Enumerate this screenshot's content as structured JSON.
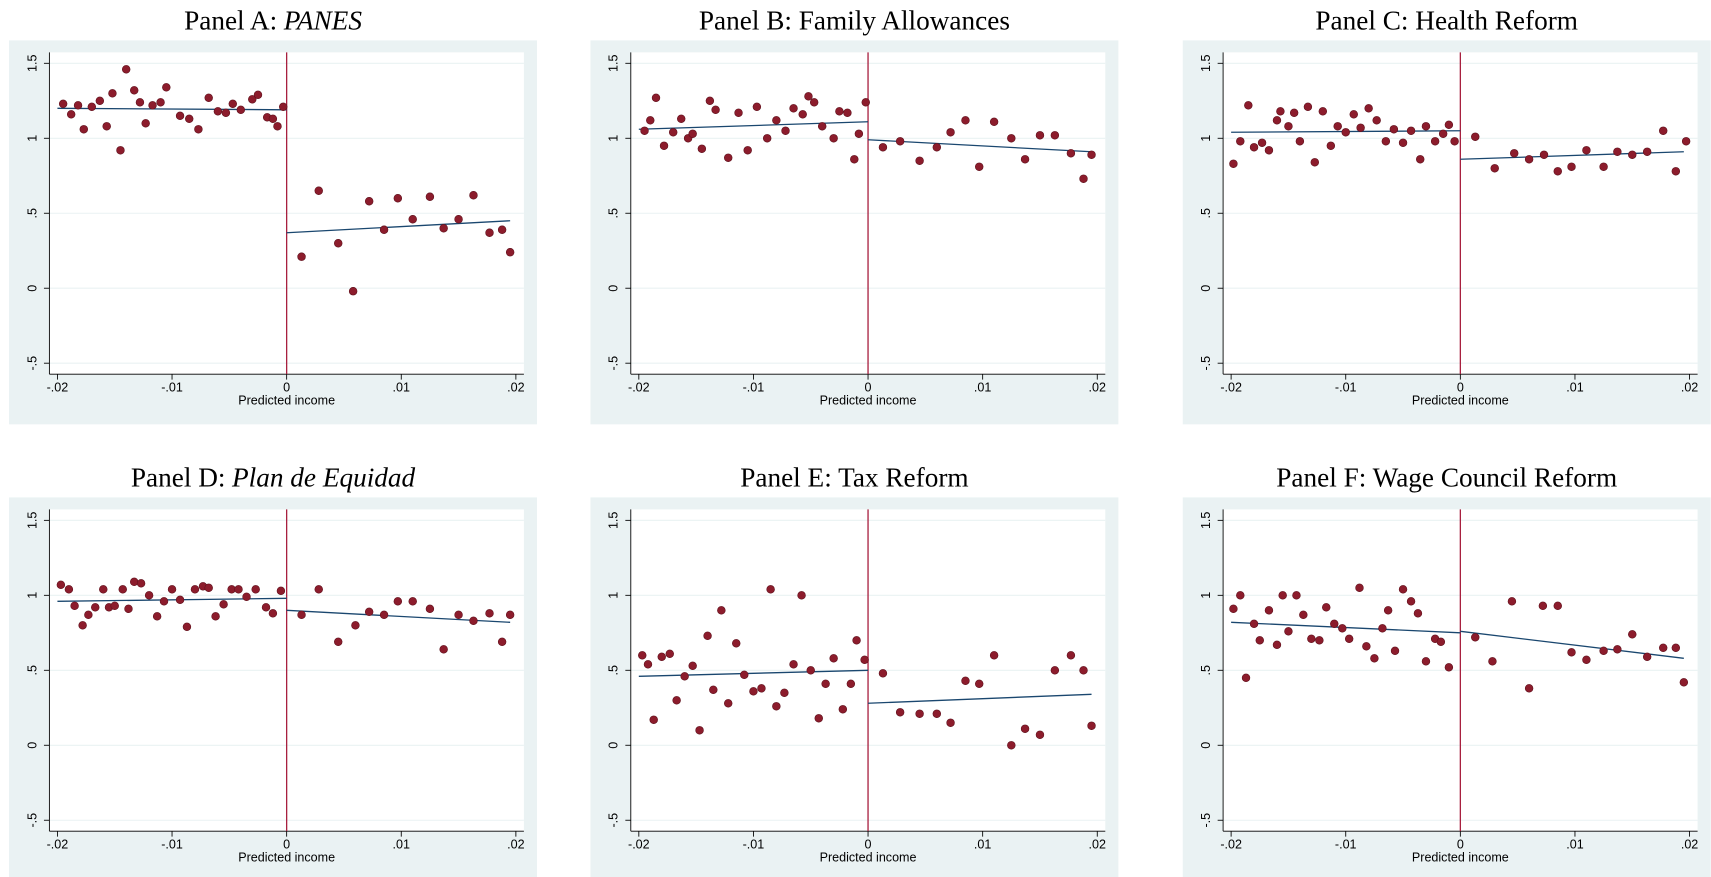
{
  "chart_data": [
    {
      "type": "scatter",
      "title": "Panel A:",
      "title_italic": "PANES",
      "xlabel": "Predicted income",
      "x": [
        -0.0195,
        -0.0188,
        -0.0182,
        -0.0177,
        -0.017,
        -0.0163,
        -0.0157,
        -0.0152,
        -0.0145,
        -0.014,
        -0.0133,
        -0.0128,
        -0.0123,
        -0.0117,
        -0.011,
        -0.0105,
        -0.0093,
        -0.0085,
        -0.0077,
        -0.0068,
        -0.006,
        -0.0053,
        -0.0047,
        -0.004,
        -0.003,
        -0.0025,
        -0.0017,
        -0.0012,
        -0.0008,
        -0.0003,
        0.0013,
        0.0028,
        0.0045,
        0.0058,
        0.0072,
        0.0085,
        0.0097,
        0.011,
        0.0125,
        0.0137,
        0.015,
        0.0163,
        0.0177,
        0.0188,
        0.0195
      ],
      "values": [
        1.23,
        1.16,
        1.22,
        1.06,
        1.21,
        1.25,
        1.08,
        1.3,
        0.92,
        1.46,
        1.32,
        1.24,
        1.1,
        1.22,
        1.24,
        1.34,
        1.15,
        1.13,
        1.06,
        1.27,
        1.18,
        1.17,
        1.23,
        1.19,
        1.26,
        1.29,
        1.14,
        1.13,
        1.08,
        1.21,
        0.21,
        0.65,
        0.3,
        -0.02,
        0.58,
        0.39,
        0.6,
        0.46,
        0.61,
        0.4,
        0.46,
        0.62,
        0.37,
        0.39,
        0.24
      ],
      "fits": [
        {
          "x": [
            -0.02,
            0
          ],
          "values": [
            1.2,
            1.19
          ]
        },
        {
          "x": [
            0,
            0.0195
          ],
          "values": [
            0.37,
            0.45
          ]
        }
      ],
      "cutoff_x": 0,
      "marker_color": "#8c1c2c",
      "line_color": "#1a476f",
      "cutoff_color": "#a8203f",
      "grid": true,
      "xlim": [
        -0.0207,
        0.0207
      ],
      "ylim": [
        -0.573,
        1.573
      ],
      "xticks": [
        {
          "value": -0.02,
          "label": "-.02"
        },
        {
          "value": -0.01,
          "label": "-.01"
        },
        0,
        {
          "value": 0.01,
          "label": ".01"
        },
        {
          "value": 0.02,
          "label": ".02"
        }
      ],
      "yticks": [
        {
          "value": -0.5,
          "label": "-.5"
        },
        0,
        {
          "value": 0.5,
          "label": ".5"
        },
        1,
        1.5
      ]
    },
    {
      "type": "scatter",
      "title": "Panel B: Family Allowances",
      "xlabel": "Predicted income",
      "x": [
        -0.0195,
        -0.019,
        -0.0185,
        -0.0178,
        -0.017,
        -0.0163,
        -0.0157,
        -0.0153,
        -0.0145,
        -0.0138,
        -0.0133,
        -0.0122,
        -0.0113,
        -0.0105,
        -0.0097,
        -0.0088,
        -0.008,
        -0.0072,
        -0.0065,
        -0.0057,
        -0.0052,
        -0.0047,
        -0.004,
        -0.003,
        -0.0025,
        -0.0018,
        -0.0012,
        -0.0008,
        -0.0002,
        0.0013,
        0.0028,
        0.0045,
        0.006,
        0.0072,
        0.0085,
        0.0097,
        0.011,
        0.0125,
        0.0137,
        0.015,
        0.0163,
        0.0177,
        0.0188,
        0.0195
      ],
      "values": [
        1.05,
        1.12,
        1.27,
        0.95,
        1.04,
        1.13,
        1.0,
        1.03,
        0.93,
        1.25,
        1.19,
        0.87,
        1.17,
        0.92,
        1.21,
        1.0,
        1.12,
        1.05,
        1.2,
        1.16,
        1.28,
        1.24,
        1.08,
        1.0,
        1.18,
        1.17,
        0.86,
        1.03,
        1.24,
        0.94,
        0.98,
        0.85,
        0.94,
        1.04,
        1.12,
        0.81,
        1.11,
        1.0,
        0.86,
        1.02,
        1.02,
        0.9,
        0.73,
        0.89
      ],
      "fits": [
        {
          "x": [
            -0.02,
            0
          ],
          "values": [
            1.06,
            1.11
          ]
        },
        {
          "x": [
            0,
            0.0195
          ],
          "values": [
            0.99,
            0.91
          ]
        }
      ],
      "cutoff_x": 0,
      "marker_color": "#8c1c2c",
      "line_color": "#1a476f",
      "cutoff_color": "#a8203f",
      "grid": true,
      "xlim": [
        -0.0207,
        0.0207
      ],
      "ylim": [
        -0.573,
        1.573
      ],
      "xticks": [
        {
          "value": -0.02,
          "label": "-.02"
        },
        {
          "value": -0.01,
          "label": "-.01"
        },
        0,
        {
          "value": 0.01,
          "label": ".01"
        },
        {
          "value": 0.02,
          "label": ".02"
        }
      ],
      "yticks": [
        {
          "value": -0.5,
          "label": "-.5"
        },
        0,
        {
          "value": 0.5,
          "label": ".5"
        },
        1,
        1.5
      ]
    },
    {
      "type": "scatter",
      "title": "Panel C: Health Reform",
      "xlabel": "Predicted income",
      "x": [
        -0.0198,
        -0.0192,
        -0.0185,
        -0.018,
        -0.0173,
        -0.0167,
        -0.016,
        -0.0157,
        -0.015,
        -0.0145,
        -0.014,
        -0.0133,
        -0.0127,
        -0.012,
        -0.0113,
        -0.0107,
        -0.01,
        -0.0093,
        -0.0087,
        -0.008,
        -0.0073,
        -0.0065,
        -0.0058,
        -0.005,
        -0.0043,
        -0.0035,
        -0.003,
        -0.0022,
        -0.0015,
        -0.001,
        -0.0005,
        0.0013,
        0.003,
        0.0047,
        0.006,
        0.0073,
        0.0085,
        0.0097,
        0.011,
        0.0125,
        0.0137,
        0.015,
        0.0163,
        0.0177,
        0.0188,
        0.0197
      ],
      "values": [
        0.83,
        0.98,
        1.22,
        0.94,
        0.97,
        0.92,
        1.12,
        1.18,
        1.08,
        1.17,
        0.98,
        1.21,
        0.84,
        1.18,
        0.95,
        1.08,
        1.04,
        1.16,
        1.07,
        1.2,
        1.12,
        0.98,
        1.06,
        0.97,
        1.05,
        0.86,
        1.08,
        0.98,
        1.03,
        1.09,
        0.98,
        1.01,
        0.8,
        0.9,
        0.86,
        0.89,
        0.78,
        0.81,
        0.92,
        0.81,
        0.91,
        0.89,
        0.91,
        1.05,
        0.78,
        0.98
      ],
      "fits": [
        {
          "x": [
            -0.02,
            0
          ],
          "values": [
            1.04,
            1.05
          ]
        },
        {
          "x": [
            0,
            0.0195
          ],
          "values": [
            0.86,
            0.91
          ]
        }
      ],
      "cutoff_x": 0,
      "marker_color": "#8c1c2c",
      "line_color": "#1a476f",
      "cutoff_color": "#a8203f",
      "grid": true,
      "xlim": [
        -0.0207,
        0.0207
      ],
      "ylim": [
        -0.573,
        1.573
      ],
      "xticks": [
        {
          "value": -0.02,
          "label": "-.02"
        },
        {
          "value": -0.01,
          "label": "-.01"
        },
        0,
        {
          "value": 0.01,
          "label": ".01"
        },
        {
          "value": 0.02,
          "label": ".02"
        }
      ],
      "yticks": [
        {
          "value": -0.5,
          "label": "-.5"
        },
        0,
        {
          "value": 0.5,
          "label": ".5"
        },
        1,
        1.5
      ]
    },
    {
      "type": "scatter",
      "title": "Panel D:",
      "title_italic": "Plan de Equidad",
      "xlabel": "Predicted income",
      "x": [
        -0.0197,
        -0.019,
        -0.0185,
        -0.0178,
        -0.0173,
        -0.0167,
        -0.016,
        -0.0155,
        -0.015,
        -0.0143,
        -0.0138,
        -0.0133,
        -0.0127,
        -0.012,
        -0.0113,
        -0.0107,
        -0.01,
        -0.0093,
        -0.0087,
        -0.008,
        -0.0073,
        -0.0068,
        -0.0062,
        -0.0055,
        -0.0048,
        -0.0042,
        -0.0035,
        -0.0027,
        -0.0018,
        -0.0012,
        -0.0005,
        0.0013,
        0.0028,
        0.0045,
        0.006,
        0.0072,
        0.0085,
        0.0097,
        0.011,
        0.0125,
        0.0137,
        0.015,
        0.0163,
        0.0177,
        0.0188,
        0.0195
      ],
      "values": [
        1.07,
        1.04,
        0.93,
        0.8,
        0.87,
        0.92,
        1.04,
        0.92,
        0.93,
        1.04,
        0.91,
        1.09,
        1.08,
        1.0,
        0.86,
        0.96,
        1.04,
        0.97,
        0.79,
        1.04,
        1.06,
        1.05,
        0.86,
        0.94,
        1.04,
        1.04,
        0.99,
        1.04,
        0.92,
        0.88,
        1.03,
        0.87,
        1.04,
        0.69,
        0.8,
        0.89,
        0.87,
        0.96,
        0.96,
        0.91,
        0.64,
        0.87,
        0.83,
        0.88,
        0.69,
        0.87
      ],
      "fits": [
        {
          "x": [
            -0.02,
            0
          ],
          "values": [
            0.96,
            0.98
          ]
        },
        {
          "x": [
            0,
            0.0195
          ],
          "values": [
            0.9,
            0.82
          ]
        }
      ],
      "cutoff_x": 0,
      "marker_color": "#8c1c2c",
      "line_color": "#1a476f",
      "cutoff_color": "#a8203f",
      "grid": true,
      "xlim": [
        -0.0207,
        0.0207
      ],
      "ylim": [
        -0.573,
        1.573
      ],
      "xticks": [
        {
          "value": -0.02,
          "label": "-.02"
        },
        {
          "value": -0.01,
          "label": "-.01"
        },
        0,
        {
          "value": 0.01,
          "label": ".01"
        },
        {
          "value": 0.02,
          "label": ".02"
        }
      ],
      "yticks": [
        {
          "value": -0.5,
          "label": "-.5"
        },
        0,
        {
          "value": 0.5,
          "label": ".5"
        },
        1,
        1.5
      ]
    },
    {
      "type": "scatter",
      "title": "Panel E: Tax Reform",
      "xlabel": "Predicted income",
      "x": [
        -0.0197,
        -0.0192,
        -0.0187,
        -0.018,
        -0.0173,
        -0.0167,
        -0.016,
        -0.0153,
        -0.0147,
        -0.014,
        -0.0135,
        -0.0128,
        -0.0122,
        -0.0115,
        -0.0108,
        -0.01,
        -0.0093,
        -0.0085,
        -0.008,
        -0.0073,
        -0.0065,
        -0.0058,
        -0.005,
        -0.0043,
        -0.0037,
        -0.003,
        -0.0022,
        -0.0015,
        -0.001,
        -0.0003,
        0.0013,
        0.0028,
        0.0045,
        0.006,
        0.0072,
        0.0085,
        0.0097,
        0.011,
        0.0125,
        0.0137,
        0.015,
        0.0163,
        0.0177,
        0.0188,
        0.0195
      ],
      "values": [
        0.6,
        0.54,
        0.17,
        0.59,
        0.61,
        0.3,
        0.46,
        0.53,
        0.1,
        0.73,
        0.37,
        0.9,
        0.28,
        0.68,
        0.47,
        0.36,
        0.38,
        1.04,
        0.26,
        0.35,
        0.54,
        1.0,
        0.5,
        0.18,
        0.41,
        0.58,
        0.24,
        0.41,
        0.7,
        0.57,
        0.48,
        0.22,
        0.21,
        0.21,
        0.15,
        0.43,
        0.41,
        0.6,
        0.0,
        0.11,
        0.07,
        0.5,
        0.6,
        0.5,
        0.13
      ],
      "fits": [
        {
          "x": [
            -0.02,
            0
          ],
          "values": [
            0.46,
            0.5
          ]
        },
        {
          "x": [
            0,
            0.0195
          ],
          "values": [
            0.28,
            0.34
          ]
        }
      ],
      "cutoff_x": 0,
      "marker_color": "#8c1c2c",
      "line_color": "#1a476f",
      "cutoff_color": "#a8203f",
      "grid": true,
      "xlim": [
        -0.0207,
        0.0207
      ],
      "ylim": [
        -0.573,
        1.573
      ],
      "xticks": [
        {
          "value": -0.02,
          "label": "-.02"
        },
        {
          "value": -0.01,
          "label": "-.01"
        },
        0,
        {
          "value": 0.01,
          "label": ".01"
        },
        {
          "value": 0.02,
          "label": ".02"
        }
      ],
      "yticks": [
        {
          "value": -0.5,
          "label": "-.5"
        },
        0,
        {
          "value": 0.5,
          "label": ".5"
        },
        1,
        1.5
      ]
    },
    {
      "type": "scatter",
      "title": "Panel F: Wage Council Reform",
      "xlabel": "Predicted income",
      "x": [
        -0.0198,
        -0.0192,
        -0.0187,
        -0.018,
        -0.0175,
        -0.0167,
        -0.016,
        -0.0155,
        -0.015,
        -0.0143,
        -0.0137,
        -0.013,
        -0.0123,
        -0.0117,
        -0.011,
        -0.0103,
        -0.0097,
        -0.0088,
        -0.0082,
        -0.0075,
        -0.0068,
        -0.0063,
        -0.0057,
        -0.005,
        -0.0043,
        -0.0037,
        -0.003,
        -0.0022,
        -0.0017,
        -0.001,
        0.0013,
        0.0028,
        0.0045,
        0.006,
        0.0072,
        0.0085,
        0.0097,
        0.011,
        0.0125,
        0.0137,
        0.015,
        0.0163,
        0.0177,
        0.0188,
        0.0195
      ],
      "values": [
        0.91,
        1.0,
        0.45,
        0.81,
        0.7,
        0.9,
        0.67,
        1.0,
        0.76,
        1.0,
        0.87,
        0.71,
        0.7,
        0.92,
        0.81,
        0.78,
        0.71,
        1.05,
        0.66,
        0.58,
        0.78,
        0.9,
        0.63,
        1.04,
        0.96,
        0.88,
        0.56,
        0.71,
        0.69,
        0.52,
        0.72,
        0.56,
        0.96,
        0.38,
        0.93,
        0.93,
        0.62,
        0.57,
        0.63,
        0.64,
        0.74,
        0.59,
        0.65,
        0.65,
        0.42
      ],
      "fits": [
        {
          "x": [
            -0.02,
            0
          ],
          "values": [
            0.82,
            0.75
          ]
        },
        {
          "x": [
            0,
            0.0195
          ],
          "values": [
            0.76,
            0.58
          ]
        }
      ],
      "cutoff_x": 0,
      "marker_color": "#8c1c2c",
      "line_color": "#1a476f",
      "cutoff_color": "#a8203f",
      "grid": true,
      "xlim": [
        -0.0207,
        0.0207
      ],
      "ylim": [
        -0.573,
        1.573
      ],
      "xticks": [
        {
          "value": -0.02,
          "label": "-.02"
        },
        {
          "value": -0.01,
          "label": "-.01"
        },
        0,
        {
          "value": 0.01,
          "label": ".01"
        },
        {
          "value": 0.02,
          "label": ".02"
        }
      ],
      "yticks": [
        {
          "value": -0.5,
          "label": "-.5"
        },
        0,
        {
          "value": 0.5,
          "label": ".5"
        },
        1,
        1.5
      ]
    }
  ]
}
